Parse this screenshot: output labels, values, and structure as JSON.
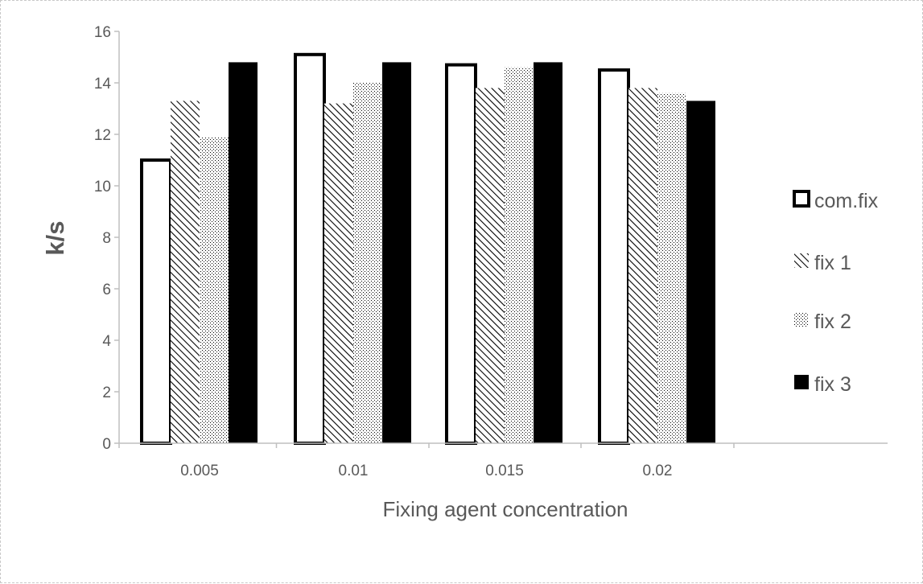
{
  "chart_data": {
    "type": "bar",
    "xlabel": "Fixing agent concentration",
    "ylabel": "k/s",
    "categories": [
      "0.005",
      "0.01",
      "0.015",
      "0.02"
    ],
    "ylim": [
      0,
      16
    ],
    "yticks": [
      0,
      2,
      4,
      6,
      8,
      10,
      12,
      14,
      16
    ],
    "grid": false,
    "legend_position": "right",
    "series": [
      {
        "name": "com.fix",
        "values": [
          11.0,
          15.1,
          14.7,
          14.5
        ],
        "pattern": "outline"
      },
      {
        "name": "fix 1",
        "values": [
          13.3,
          13.2,
          13.8,
          13.8
        ],
        "pattern": "diagonal-hatch"
      },
      {
        "name": "fix 2",
        "values": [
          11.9,
          14.0,
          14.6,
          13.6
        ],
        "pattern": "dots"
      },
      {
        "name": "fix 3",
        "values": [
          14.8,
          14.8,
          14.8,
          13.3
        ],
        "pattern": "solid"
      }
    ],
    "colors": {
      "axis": "#bfbfbf",
      "text": "#595959",
      "bar_dark": "#000000",
      "bar_light": "#ffffff"
    }
  }
}
